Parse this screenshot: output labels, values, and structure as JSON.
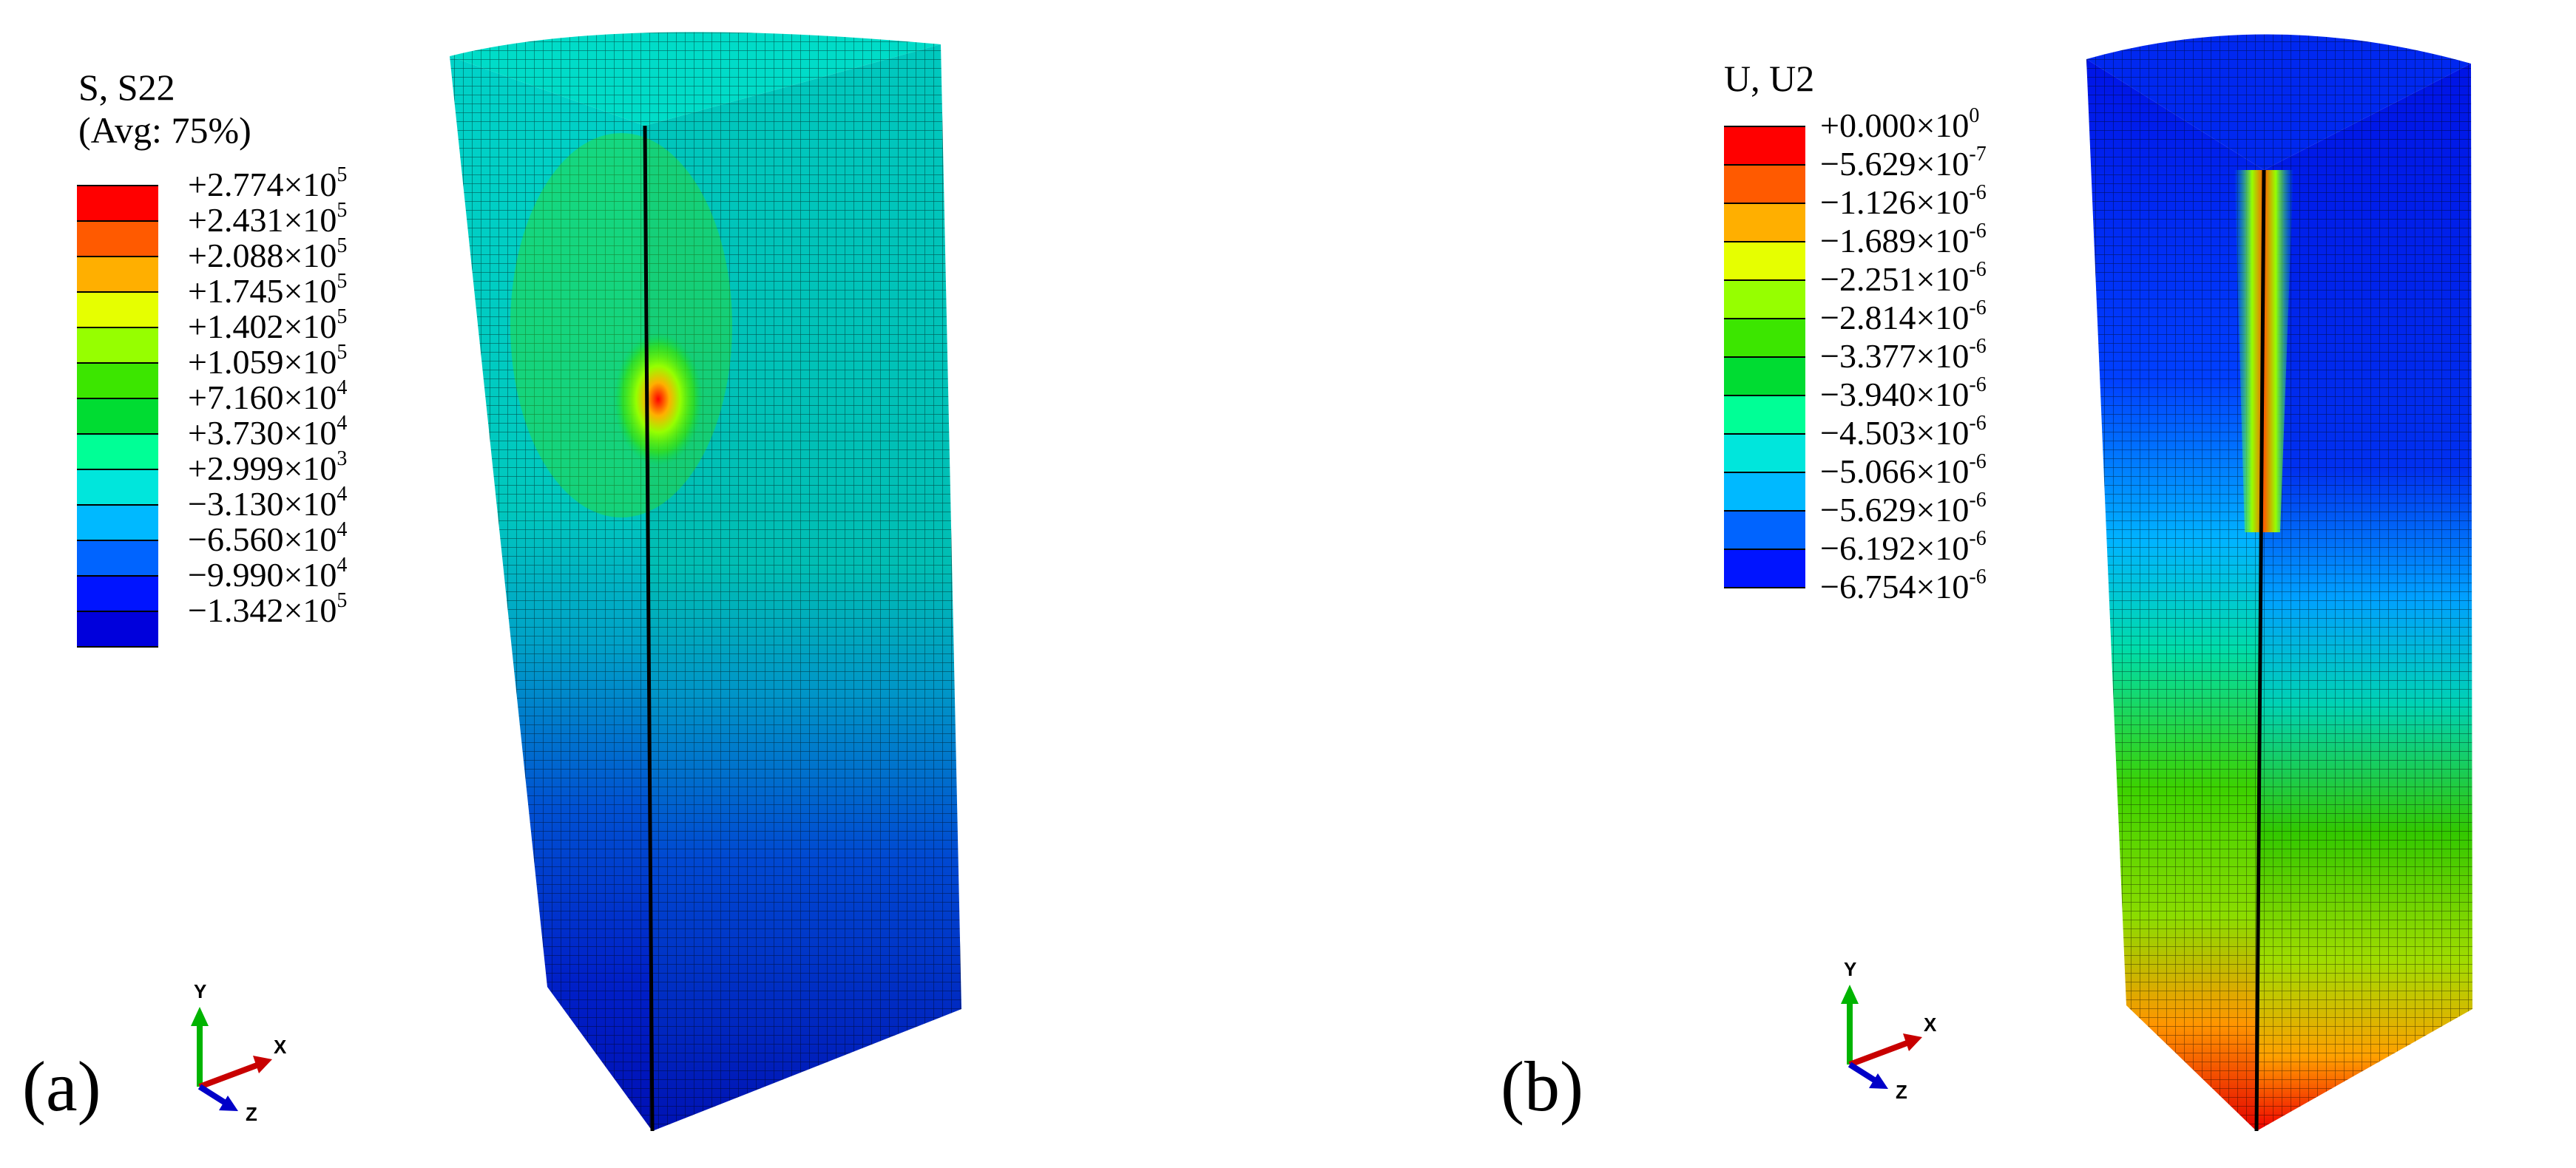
{
  "panel_a": {
    "label": "(a)",
    "legend_title_1": "S, S22",
    "legend_title_2": "(Avg: 75%)",
    "colors": [
      "#ff0000",
      "#ff5a00",
      "#ffaf00",
      "#e6ff00",
      "#96ff00",
      "#3ce600",
      "#00dc32",
      "#00ff96",
      "#00e6dc",
      "#00b9ff",
      "#0064ff",
      "#0014ff",
      "#0000dc"
    ],
    "ticks": [
      {
        "mant": "+2.774×10",
        "exp": "5"
      },
      {
        "mant": "+2.431×10",
        "exp": "5"
      },
      {
        "mant": "+2.088×10",
        "exp": "5"
      },
      {
        "mant": "+1.745×10",
        "exp": "5"
      },
      {
        "mant": "+1.402×10",
        "exp": "5"
      },
      {
        "mant": "+1.059×10",
        "exp": "5"
      },
      {
        "mant": "+7.160×10",
        "exp": "4"
      },
      {
        "mant": "+3.730×10",
        "exp": "4"
      },
      {
        "mant": "+2.999×10",
        "exp": "3"
      },
      {
        "mant": "−3.130×10",
        "exp": "4"
      },
      {
        "mant": "−6.560×10",
        "exp": "4"
      },
      {
        "mant": "−9.990×10",
        "exp": "4"
      },
      {
        "mant": "−1.342×10",
        "exp": "5"
      }
    ],
    "triad": {
      "y": "Y",
      "x": "X",
      "z": "Z"
    }
  },
  "panel_b": {
    "label": "(b)",
    "legend_title_1": "U, U2",
    "colors": [
      "#ff0000",
      "#ff5a00",
      "#ffaf00",
      "#e6ff00",
      "#96ff00",
      "#3ce600",
      "#00dc32",
      "#00ff96",
      "#00e6dc",
      "#00b9ff",
      "#0064ff",
      "#0014ff"
    ],
    "ticks": [
      {
        "mant": "+0.000×10",
        "exp": "0"
      },
      {
        "mant": "−5.629×10",
        "exp": "-7"
      },
      {
        "mant": "−1.126×10",
        "exp": "-6"
      },
      {
        "mant": "−1.689×10",
        "exp": "-6"
      },
      {
        "mant": "−2.251×10",
        "exp": "-6"
      },
      {
        "mant": "−2.814×10",
        "exp": "-6"
      },
      {
        "mant": "−3.377×10",
        "exp": "-6"
      },
      {
        "mant": "−3.940×10",
        "exp": "-6"
      },
      {
        "mant": "−4.503×10",
        "exp": "-6"
      },
      {
        "mant": "−5.066×10",
        "exp": "-6"
      },
      {
        "mant": "−5.629×10",
        "exp": "-6"
      },
      {
        "mant": "−6.192×10",
        "exp": "-6"
      },
      {
        "mant": "−6.754×10",
        "exp": "-6"
      }
    ],
    "triad": {
      "y": "Y",
      "x": "X",
      "z": "Z"
    }
  }
}
